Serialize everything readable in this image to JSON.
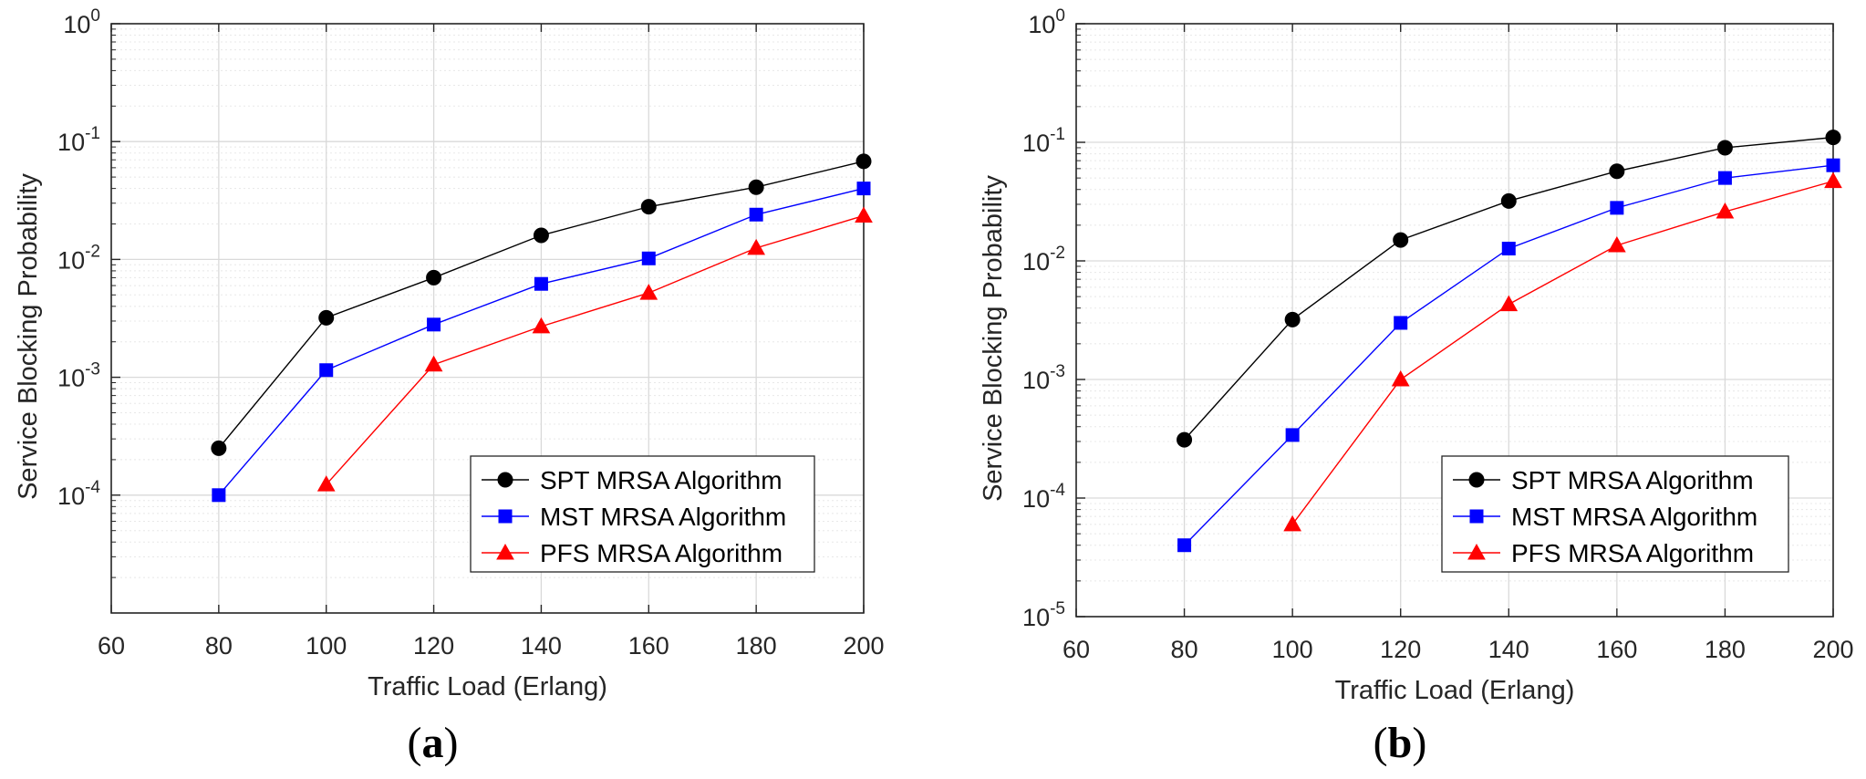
{
  "chart_data": [
    {
      "type": "line",
      "panel_label": "a",
      "xlabel": "Traffic Load (Erlang)",
      "ylabel": "Service Blocking Probability",
      "xlim": [
        60,
        200
      ],
      "ylim": [
        1e-05,
        1
      ],
      "yscale": "log",
      "x_ticks": [
        60,
        80,
        100,
        120,
        140,
        160,
        180,
        200
      ],
      "y_ticks": [
        {
          "base": "10",
          "exp": "-4",
          "value": 0.0001
        },
        {
          "base": "10",
          "exp": "-3",
          "value": 0.001
        },
        {
          "base": "10",
          "exp": "-2",
          "value": 0.01
        },
        {
          "base": "10",
          "exp": "-1",
          "value": 0.1
        },
        {
          "base": "10",
          "exp": "0",
          "value": 1
        }
      ],
      "grid": true,
      "legend_position": "bottom-right",
      "series": [
        {
          "name": "SPT MRSA Algorithm",
          "color": "#000000",
          "marker": "circle",
          "x": [
            80,
            100,
            120,
            140,
            160,
            180,
            200
          ],
          "values": [
            0.00025,
            0.0032,
            0.007,
            0.016,
            0.028,
            0.041,
            0.068
          ]
        },
        {
          "name": "MST MRSA Algorithm",
          "color": "#0000ff",
          "marker": "square",
          "x": [
            80,
            100,
            120,
            140,
            160,
            180,
            200
          ],
          "values": [
            0.0001,
            0.00115,
            0.0028,
            0.0062,
            0.0102,
            0.024,
            0.04
          ]
        },
        {
          "name": "PFS MRSA Algorithm",
          "color": "#ff0000",
          "marker": "triangle",
          "x": [
            100,
            120,
            140,
            160,
            180,
            200
          ],
          "values": [
            0.000123,
            0.00128,
            0.0027,
            0.0052,
            0.0125,
            0.0235
          ]
        }
      ]
    },
    {
      "type": "line",
      "panel_label": "b",
      "xlabel": "Traffic Load (Erlang)",
      "ylabel": "Service Blocking Probability",
      "xlim": [
        60,
        200
      ],
      "ylim": [
        1e-05,
        1
      ],
      "yscale": "log",
      "x_ticks": [
        60,
        80,
        100,
        120,
        140,
        160,
        180,
        200
      ],
      "y_ticks": [
        {
          "base": "10",
          "exp": "-5",
          "value": 1e-05
        },
        {
          "base": "10",
          "exp": "-4",
          "value": 0.0001
        },
        {
          "base": "10",
          "exp": "-3",
          "value": 0.001
        },
        {
          "base": "10",
          "exp": "-2",
          "value": 0.01
        },
        {
          "base": "10",
          "exp": "-1",
          "value": 0.1
        },
        {
          "base": "10",
          "exp": "0",
          "value": 1
        }
      ],
      "grid": true,
      "legend_position": "bottom-right",
      "series": [
        {
          "name": "SPT MRSA Algorithm",
          "color": "#000000",
          "marker": "circle",
          "x": [
            80,
            100,
            120,
            140,
            160,
            180,
            200
          ],
          "values": [
            0.00031,
            0.0032,
            0.015,
            0.032,
            0.057,
            0.09,
            0.11
          ]
        },
        {
          "name": "MST MRSA Algorithm",
          "color": "#0000ff",
          "marker": "square",
          "x": [
            80,
            100,
            120,
            140,
            160,
            180,
            200
          ],
          "values": [
            4e-05,
            0.00034,
            0.003,
            0.0127,
            0.028,
            0.05,
            0.064
          ]
        },
        {
          "name": "PFS MRSA Algorithm",
          "color": "#ff0000",
          "marker": "triangle",
          "x": [
            100,
            120,
            140,
            160,
            180,
            200
          ],
          "values": [
            6e-05,
            0.001,
            0.0043,
            0.0135,
            0.026,
            0.047
          ]
        }
      ]
    }
  ]
}
